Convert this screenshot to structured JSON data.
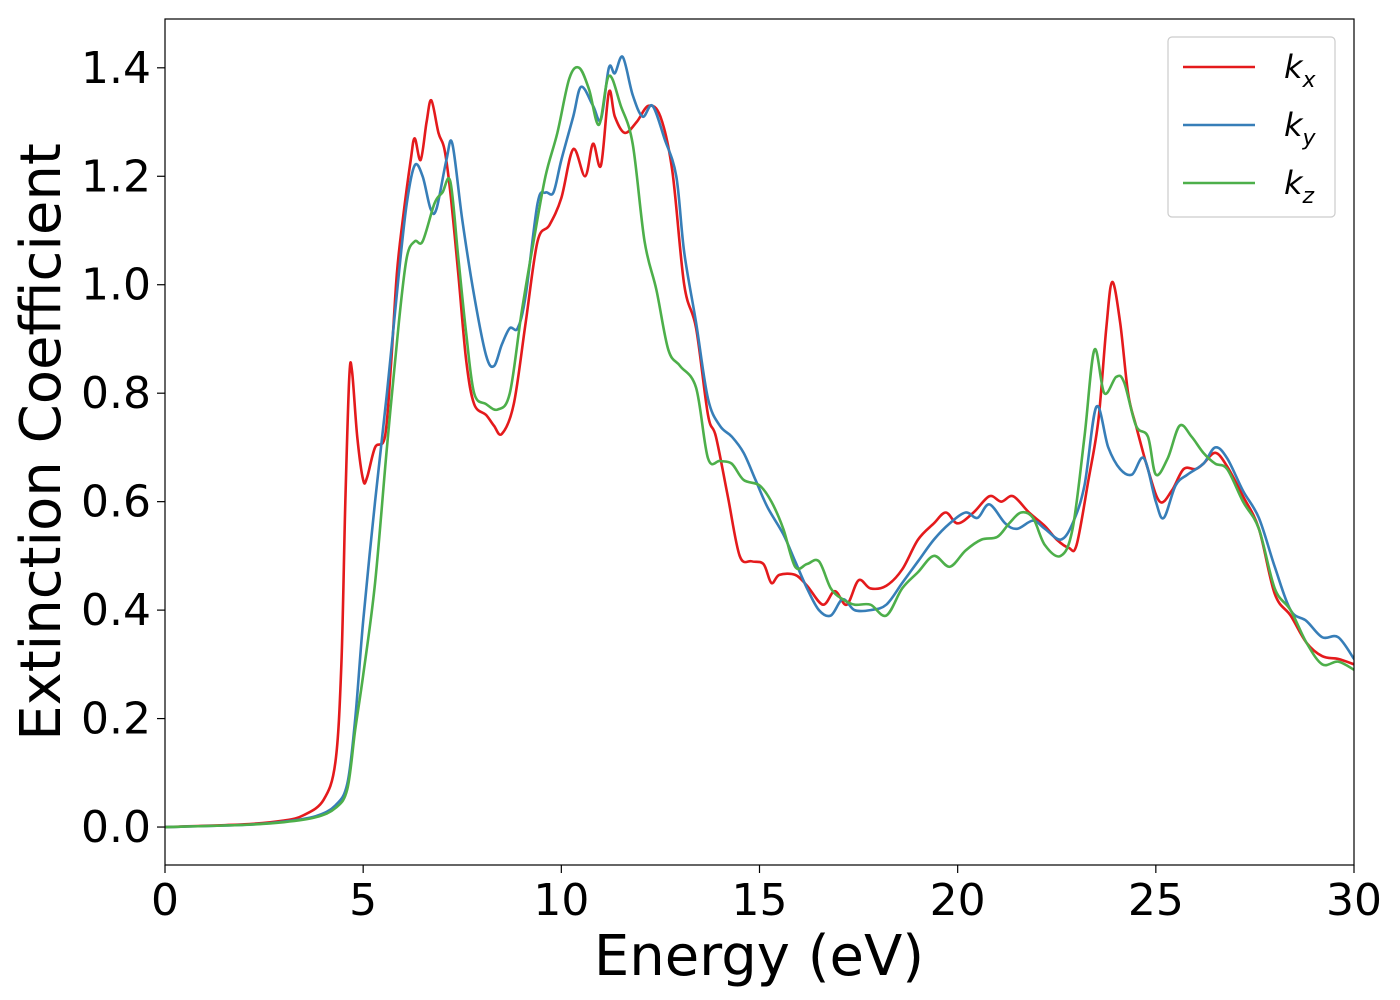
{
  "chart_data": {
    "type": "line",
    "title": "",
    "xlabel": "Energy (eV)",
    "ylabel": "Extinction Coefficient",
    "xlim": [
      0,
      30
    ],
    "ylim": [
      -0.07,
      1.49
    ],
    "x_ticks": [
      0,
      5,
      10,
      15,
      20,
      25,
      30
    ],
    "x_tick_labels": [
      "0",
      "5",
      "10",
      "15",
      "20",
      "25",
      "30"
    ],
    "y_ticks": [
      0.0,
      0.2,
      0.4,
      0.6,
      0.8,
      1.0,
      1.2,
      1.4
    ],
    "y_tick_labels": [
      "0.0",
      "0.2",
      "0.4",
      "0.6",
      "0.8",
      "1.0",
      "1.2",
      "1.4"
    ],
    "grid": false,
    "legend_position": "top-right",
    "series": [
      {
        "name": "k",
        "subscript": "x",
        "color": "#e41a1c",
        "points": [
          [
            0,
            0
          ],
          [
            2,
            0.005
          ],
          [
            3,
            0.012
          ],
          [
            3.5,
            0.022
          ],
          [
            4,
            0.05
          ],
          [
            4.3,
            0.12
          ],
          [
            4.45,
            0.3
          ],
          [
            4.55,
            0.6
          ],
          [
            4.65,
            0.83
          ],
          [
            4.72,
            0.84
          ],
          [
            4.85,
            0.72
          ],
          [
            5.0,
            0.64
          ],
          [
            5.1,
            0.645
          ],
          [
            5.3,
            0.7
          ],
          [
            5.55,
            0.72
          ],
          [
            5.7,
            0.85
          ],
          [
            5.85,
            1.02
          ],
          [
            6.0,
            1.12
          ],
          [
            6.2,
            1.23
          ],
          [
            6.3,
            1.27
          ],
          [
            6.45,
            1.23
          ],
          [
            6.6,
            1.3
          ],
          [
            6.72,
            1.34
          ],
          [
            6.9,
            1.28
          ],
          [
            7.05,
            1.25
          ],
          [
            7.2,
            1.17
          ],
          [
            7.4,
            1.02
          ],
          [
            7.6,
            0.86
          ],
          [
            7.8,
            0.78
          ],
          [
            8.1,
            0.76
          ],
          [
            8.3,
            0.74
          ],
          [
            8.5,
            0.725
          ],
          [
            8.8,
            0.78
          ],
          [
            9.1,
            0.93
          ],
          [
            9.4,
            1.08
          ],
          [
            9.7,
            1.11
          ],
          [
            10.0,
            1.16
          ],
          [
            10.3,
            1.25
          ],
          [
            10.6,
            1.2
          ],
          [
            10.8,
            1.26
          ],
          [
            11.0,
            1.22
          ],
          [
            11.2,
            1.355
          ],
          [
            11.35,
            1.31
          ],
          [
            11.6,
            1.28
          ],
          [
            11.9,
            1.3
          ],
          [
            12.2,
            1.33
          ],
          [
            12.5,
            1.31
          ],
          [
            12.8,
            1.21
          ],
          [
            13.1,
            1.0
          ],
          [
            13.4,
            0.92
          ],
          [
            13.7,
            0.76
          ],
          [
            13.9,
            0.72
          ],
          [
            14.2,
            0.61
          ],
          [
            14.5,
            0.5
          ],
          [
            14.8,
            0.49
          ],
          [
            15.1,
            0.485
          ],
          [
            15.3,
            0.45
          ],
          [
            15.5,
            0.465
          ],
          [
            15.9,
            0.465
          ],
          [
            16.2,
            0.445
          ],
          [
            16.6,
            0.41
          ],
          [
            16.9,
            0.435
          ],
          [
            17.2,
            0.41
          ],
          [
            17.5,
            0.455
          ],
          [
            17.8,
            0.44
          ],
          [
            18.2,
            0.445
          ],
          [
            18.6,
            0.475
          ],
          [
            19.0,
            0.53
          ],
          [
            19.4,
            0.56
          ],
          [
            19.7,
            0.58
          ],
          [
            20.0,
            0.56
          ],
          [
            20.4,
            0.58
          ],
          [
            20.8,
            0.61
          ],
          [
            21.1,
            0.6
          ],
          [
            21.4,
            0.61
          ],
          [
            21.8,
            0.58
          ],
          [
            22.2,
            0.555
          ],
          [
            22.5,
            0.53
          ],
          [
            22.8,
            0.515
          ],
          [
            23.0,
            0.52
          ],
          [
            23.3,
            0.64
          ],
          [
            23.55,
            0.75
          ],
          [
            23.75,
            0.92
          ],
          [
            23.9,
            1.005
          ],
          [
            24.1,
            0.93
          ],
          [
            24.3,
            0.8
          ],
          [
            24.5,
            0.74
          ],
          [
            24.8,
            0.66
          ],
          [
            25.1,
            0.6
          ],
          [
            25.4,
            0.62
          ],
          [
            25.7,
            0.66
          ],
          [
            26.0,
            0.66
          ],
          [
            26.2,
            0.67
          ],
          [
            26.5,
            0.69
          ],
          [
            26.8,
            0.665
          ],
          [
            27.2,
            0.61
          ],
          [
            27.6,
            0.55
          ],
          [
            28.0,
            0.43
          ],
          [
            28.4,
            0.39
          ],
          [
            28.8,
            0.34
          ],
          [
            29.2,
            0.315
          ],
          [
            29.6,
            0.31
          ],
          [
            30,
            0.3
          ]
        ]
      },
      {
        "name": "k",
        "subscript": "y",
        "color": "#377eb8",
        "points": [
          [
            0,
            0
          ],
          [
            2,
            0.004
          ],
          [
            3,
            0.01
          ],
          [
            3.8,
            0.02
          ],
          [
            4.3,
            0.04
          ],
          [
            4.6,
            0.08
          ],
          [
            4.8,
            0.2
          ],
          [
            5.0,
            0.38
          ],
          [
            5.3,
            0.6
          ],
          [
            5.6,
            0.8
          ],
          [
            5.9,
            1.02
          ],
          [
            6.1,
            1.15
          ],
          [
            6.3,
            1.22
          ],
          [
            6.5,
            1.2
          ],
          [
            6.7,
            1.14
          ],
          [
            6.85,
            1.14
          ],
          [
            7.1,
            1.23
          ],
          [
            7.25,
            1.26
          ],
          [
            7.5,
            1.12
          ],
          [
            7.8,
            0.98
          ],
          [
            8.1,
            0.87
          ],
          [
            8.3,
            0.85
          ],
          [
            8.5,
            0.89
          ],
          [
            8.7,
            0.92
          ],
          [
            8.9,
            0.92
          ],
          [
            9.1,
            0.98
          ],
          [
            9.4,
            1.15
          ],
          [
            9.6,
            1.17
          ],
          [
            9.8,
            1.17
          ],
          [
            10.0,
            1.23
          ],
          [
            10.3,
            1.31
          ],
          [
            10.5,
            1.365
          ],
          [
            10.8,
            1.33
          ],
          [
            11.0,
            1.305
          ],
          [
            11.2,
            1.4
          ],
          [
            11.35,
            1.39
          ],
          [
            11.55,
            1.42
          ],
          [
            11.8,
            1.35
          ],
          [
            12.05,
            1.31
          ],
          [
            12.3,
            1.33
          ],
          [
            12.6,
            1.27
          ],
          [
            12.9,
            1.2
          ],
          [
            13.1,
            1.06
          ],
          [
            13.4,
            0.93
          ],
          [
            13.7,
            0.79
          ],
          [
            14.0,
            0.74
          ],
          [
            14.3,
            0.72
          ],
          [
            14.6,
            0.69
          ],
          [
            14.9,
            0.64
          ],
          [
            15.2,
            0.59
          ],
          [
            15.6,
            0.54
          ],
          [
            15.9,
            0.49
          ],
          [
            16.2,
            0.44
          ],
          [
            16.5,
            0.4
          ],
          [
            16.8,
            0.39
          ],
          [
            17.1,
            0.42
          ],
          [
            17.4,
            0.4
          ],
          [
            17.8,
            0.4
          ],
          [
            18.2,
            0.41
          ],
          [
            18.6,
            0.45
          ],
          [
            19.0,
            0.49
          ],
          [
            19.4,
            0.53
          ],
          [
            19.8,
            0.56
          ],
          [
            20.2,
            0.58
          ],
          [
            20.5,
            0.57
          ],
          [
            20.8,
            0.595
          ],
          [
            21.2,
            0.56
          ],
          [
            21.5,
            0.55
          ],
          [
            21.9,
            0.565
          ],
          [
            22.2,
            0.55
          ],
          [
            22.6,
            0.53
          ],
          [
            22.9,
            0.56
          ],
          [
            23.2,
            0.63
          ],
          [
            23.5,
            0.775
          ],
          [
            23.8,
            0.7
          ],
          [
            24.1,
            0.66
          ],
          [
            24.4,
            0.65
          ],
          [
            24.7,
            0.68
          ],
          [
            25.0,
            0.6
          ],
          [
            25.2,
            0.57
          ],
          [
            25.5,
            0.63
          ],
          [
            25.8,
            0.65
          ],
          [
            26.2,
            0.67
          ],
          [
            26.5,
            0.7
          ],
          [
            26.8,
            0.68
          ],
          [
            27.2,
            0.62
          ],
          [
            27.6,
            0.57
          ],
          [
            28.0,
            0.48
          ],
          [
            28.4,
            0.4
          ],
          [
            28.8,
            0.38
          ],
          [
            29.2,
            0.35
          ],
          [
            29.6,
            0.35
          ],
          [
            30,
            0.31
          ]
        ]
      },
      {
        "name": "k",
        "subscript": "z",
        "color": "#4daf4a",
        "points": [
          [
            0,
            0
          ],
          [
            2,
            0.004
          ],
          [
            3,
            0.009
          ],
          [
            3.8,
            0.018
          ],
          [
            4.3,
            0.035
          ],
          [
            4.6,
            0.07
          ],
          [
            4.8,
            0.18
          ],
          [
            5.0,
            0.28
          ],
          [
            5.3,
            0.45
          ],
          [
            5.6,
            0.7
          ],
          [
            5.9,
            0.93
          ],
          [
            6.1,
            1.05
          ],
          [
            6.3,
            1.08
          ],
          [
            6.5,
            1.08
          ],
          [
            6.8,
            1.15
          ],
          [
            7.0,
            1.17
          ],
          [
            7.2,
            1.19
          ],
          [
            7.4,
            1.05
          ],
          [
            7.6,
            0.91
          ],
          [
            7.8,
            0.8
          ],
          [
            8.1,
            0.78
          ],
          [
            8.4,
            0.77
          ],
          [
            8.7,
            0.8
          ],
          [
            9.0,
            0.95
          ],
          [
            9.3,
            1.08
          ],
          [
            9.6,
            1.2
          ],
          [
            9.9,
            1.28
          ],
          [
            10.2,
            1.38
          ],
          [
            10.45,
            1.4
          ],
          [
            10.7,
            1.36
          ],
          [
            10.95,
            1.295
          ],
          [
            11.2,
            1.385
          ],
          [
            11.5,
            1.33
          ],
          [
            11.8,
            1.26
          ],
          [
            12.1,
            1.08
          ],
          [
            12.4,
            0.99
          ],
          [
            12.7,
            0.88
          ],
          [
            13.0,
            0.85
          ],
          [
            13.4,
            0.81
          ],
          [
            13.7,
            0.68
          ],
          [
            14.0,
            0.675
          ],
          [
            14.3,
            0.67
          ],
          [
            14.6,
            0.64
          ],
          [
            15.0,
            0.63
          ],
          [
            15.3,
            0.6
          ],
          [
            15.6,
            0.55
          ],
          [
            15.9,
            0.48
          ],
          [
            16.2,
            0.485
          ],
          [
            16.5,
            0.49
          ],
          [
            16.8,
            0.44
          ],
          [
            17.1,
            0.42
          ],
          [
            17.4,
            0.41
          ],
          [
            17.8,
            0.41
          ],
          [
            18.2,
            0.39
          ],
          [
            18.6,
            0.44
          ],
          [
            19.0,
            0.47
          ],
          [
            19.4,
            0.5
          ],
          [
            19.8,
            0.48
          ],
          [
            20.2,
            0.51
          ],
          [
            20.6,
            0.53
          ],
          [
            21.0,
            0.535
          ],
          [
            21.3,
            0.56
          ],
          [
            21.6,
            0.58
          ],
          [
            21.9,
            0.57
          ],
          [
            22.2,
            0.52
          ],
          [
            22.6,
            0.5
          ],
          [
            22.9,
            0.55
          ],
          [
            23.2,
            0.72
          ],
          [
            23.45,
            0.88
          ],
          [
            23.7,
            0.8
          ],
          [
            24.0,
            0.83
          ],
          [
            24.2,
            0.82
          ],
          [
            24.5,
            0.74
          ],
          [
            24.8,
            0.72
          ],
          [
            25.0,
            0.65
          ],
          [
            25.3,
            0.68
          ],
          [
            25.6,
            0.74
          ],
          [
            25.9,
            0.72
          ],
          [
            26.2,
            0.69
          ],
          [
            26.5,
            0.67
          ],
          [
            26.8,
            0.66
          ],
          [
            27.2,
            0.6
          ],
          [
            27.6,
            0.55
          ],
          [
            28.0,
            0.44
          ],
          [
            28.4,
            0.4
          ],
          [
            28.8,
            0.34
          ],
          [
            29.2,
            0.3
          ],
          [
            29.6,
            0.305
          ],
          [
            30,
            0.29
          ]
        ]
      }
    ]
  }
}
